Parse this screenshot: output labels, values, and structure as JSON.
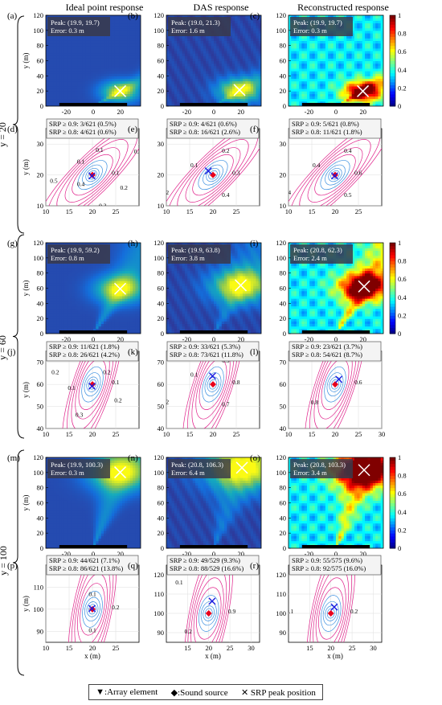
{
  "columns": [
    "Ideal point response",
    "DAS response",
    "Reconstructed response"
  ],
  "rows": [
    "y = 20",
    "y = 60",
    "y = 100"
  ],
  "legend": {
    "array": "▼:Array element",
    "source": "◆:Sound source",
    "peak": "✕ SRP peak position"
  },
  "colors": {
    "contour_low": "#3b8fe0",
    "contour_high": "#e0208a",
    "source": "#e8001c",
    "peak_marker": "#1a1adf"
  },
  "chart_data": [
    {
      "label": "(a)",
      "type": "heatmap",
      "variant": "ideal",
      "row": 0,
      "col": 0,
      "text": [
        "Peak: (19.9, 19.7)",
        "Error: 0.3 m"
      ],
      "xlim": [
        -35,
        35
      ],
      "ylim": [
        0,
        120
      ],
      "xticks": [
        -20,
        0,
        20
      ],
      "yticks": [
        0,
        20,
        40,
        60,
        80,
        100,
        120
      ],
      "ylabel": "y (m)",
      "peak": [
        19.9,
        19.7
      ],
      "colorbar": false
    },
    {
      "label": "(b)",
      "type": "heatmap",
      "variant": "das",
      "row": 0,
      "col": 1,
      "text": [
        "Peak: (19.0, 21.3)",
        "Error: 1.6 m"
      ],
      "xlim": [
        -35,
        35
      ],
      "ylim": [
        0,
        120
      ],
      "xticks": [
        -20,
        0,
        20
      ],
      "yticks": [
        0,
        20,
        40,
        60,
        80,
        100,
        120
      ],
      "peak": [
        19.0,
        21.3
      ],
      "colorbar": false
    },
    {
      "label": "(c)",
      "type": "heatmap",
      "variant": "recon",
      "row": 0,
      "col": 2,
      "text": [
        "Peak: (19.9, 19.7)",
        "Error: 0.3 m"
      ],
      "xlim": [
        -35,
        35
      ],
      "ylim": [
        0,
        120
      ],
      "xticks": [
        -20,
        0,
        20
      ],
      "yticks": [
        0,
        20,
        40,
        60,
        80,
        100,
        120
      ],
      "peak": [
        19.9,
        19.7
      ],
      "colorbar": true,
      "colorbar_ticks": [
        0,
        0.2,
        0.4,
        0.6,
        0.8,
        1
      ]
    },
    {
      "label": "(d)",
      "type": "contour",
      "row": 1,
      "col": 0,
      "text": [
        "SRP ≥ 0.9: 3/621 (0.5%)",
        "SRP ≥ 0.8: 4/621 (0.6%)"
      ],
      "xlim": [
        10,
        30
      ],
      "ylim": [
        10,
        35
      ],
      "xticks": [
        10,
        15,
        20,
        25
      ],
      "yticks": [
        10,
        20,
        30
      ],
      "ylabel": "y (m)",
      "source": [
        20,
        20
      ],
      "peak": [
        19.9,
        19.7
      ],
      "contour_labels": [
        "0.1",
        "0.2",
        "0.3",
        "0.4",
        "0.5",
        "0.3",
        "0.1",
        "0.1",
        "0.2"
      ]
    },
    {
      "label": "(e)",
      "type": "contour",
      "row": 1,
      "col": 1,
      "text": [
        "SRP ≥ 0.9: 4/621 (0.6%)",
        "SRP ≥ 0.8: 16/621 (2.6%)"
      ],
      "xlim": [
        10,
        30
      ],
      "ylim": [
        10,
        35
      ],
      "xticks": [
        10,
        15,
        20,
        25
      ],
      "yticks": [
        10,
        20,
        30
      ],
      "source": [
        20,
        20
      ],
      "peak": [
        19.0,
        21.3
      ],
      "contour_labels": [
        "0.3",
        "0.4",
        "0.2",
        "0.1",
        "0.2"
      ]
    },
    {
      "label": "(f)",
      "type": "contour",
      "row": 1,
      "col": 2,
      "text": [
        "SRP ≥ 0.9: 5/621 (0.8%)",
        "SRP ≥ 0.8: 11/621 (1.8%)"
      ],
      "xlim": [
        10,
        30
      ],
      "ylim": [
        10,
        35
      ],
      "xticks": [
        10,
        15,
        20,
        25
      ],
      "yticks": [
        10,
        20,
        30
      ],
      "source": [
        20,
        20
      ],
      "peak": [
        19.9,
        19.7
      ],
      "contour_labels": [
        "0.6",
        "0.5",
        "0.4",
        "0.4",
        "0.4"
      ]
    },
    {
      "label": "(g)",
      "type": "heatmap",
      "variant": "ideal",
      "row": 2,
      "col": 0,
      "text": [
        "Peak: (19.9, 59.2)",
        "Error: 0.8 m"
      ],
      "xlim": [
        -35,
        35
      ],
      "ylim": [
        0,
        120
      ],
      "xticks": [
        -20,
        0,
        20
      ],
      "yticks": [
        0,
        20,
        40,
        60,
        80,
        100,
        120
      ],
      "ylabel": "y (m)",
      "peak": [
        19.9,
        59.2
      ],
      "colorbar": false
    },
    {
      "label": "(h)",
      "type": "heatmap",
      "variant": "das",
      "row": 2,
      "col": 1,
      "text": [
        "Peak: (19.9, 63.8)",
        "Error: 3.8 m"
      ],
      "xlim": [
        -35,
        35
      ],
      "ylim": [
        0,
        120
      ],
      "xticks": [
        -20,
        0,
        20
      ],
      "yticks": [
        0,
        20,
        40,
        60,
        80,
        100,
        120
      ],
      "peak": [
        19.9,
        63.8
      ],
      "colorbar": false
    },
    {
      "label": "(i)",
      "type": "heatmap",
      "variant": "recon",
      "row": 2,
      "col": 2,
      "text": [
        "Peak: (20.8, 62.3)",
        "Error: 2.4 m"
      ],
      "xlim": [
        -35,
        35
      ],
      "ylim": [
        0,
        120
      ],
      "xticks": [
        -20,
        0,
        20
      ],
      "yticks": [
        0,
        20,
        40,
        60,
        80,
        100,
        120
      ],
      "peak": [
        20.8,
        62.3
      ],
      "colorbar": true,
      "colorbar_ticks": [
        0,
        0.2,
        0.4,
        0.6,
        0.8,
        1
      ]
    },
    {
      "label": "(j)",
      "type": "contour",
      "row": 3,
      "col": 0,
      "text": [
        "SRP ≥ 0.9: 11/621 (1.8%)",
        "SRP ≥ 0.8: 26/621 (4.2%)"
      ],
      "xlim": [
        10,
        30
      ],
      "ylim": [
        40,
        75
      ],
      "xticks": [
        10,
        15,
        20,
        25
      ],
      "yticks": [
        40,
        50,
        60,
        70
      ],
      "ylabel": "y (m)",
      "source": [
        20,
        60
      ],
      "peak": [
        19.9,
        59.2
      ],
      "contour_labels": [
        "0.1",
        "0.2",
        "0.3",
        "0.1",
        "0.2",
        "0.3",
        "0.2"
      ]
    },
    {
      "label": "(k)",
      "type": "contour",
      "row": 3,
      "col": 1,
      "text": [
        "SRP ≥ 0.9: 33/621 (5.3%)",
        "SRP ≥ 0.8: 73/621 (11.8%)"
      ],
      "xlim": [
        10,
        30
      ],
      "ylim": [
        40,
        75
      ],
      "xticks": [
        10,
        15,
        20,
        25
      ],
      "yticks": [
        40,
        50,
        60,
        70
      ],
      "source": [
        20,
        60
      ],
      "peak": [
        19.9,
        63.8
      ],
      "contour_labels": [
        "0.8",
        "0.7",
        "0.2",
        "0.1",
        "0.3"
      ]
    },
    {
      "label": "(l)",
      "type": "contour",
      "row": 3,
      "col": 2,
      "text": [
        "SRP ≥ 0.9: 23/621 (3.7%)",
        "SRP ≥ 0.8: 54/621 (8.7%)"
      ],
      "xlim": [
        10,
        30
      ],
      "ylim": [
        40,
        75
      ],
      "xticks": [
        10,
        15,
        20,
        25,
        30
      ],
      "yticks": [
        40,
        50,
        60,
        70
      ],
      "source": [
        20,
        60
      ],
      "peak": [
        20.8,
        62.3
      ],
      "contour_labels": [
        "0.6",
        "0.8",
        "0.4"
      ]
    },
    {
      "label": "(m)",
      "type": "heatmap",
      "variant": "ideal",
      "row": 4,
      "col": 0,
      "text": [
        "Peak: (19.9, 100.3)",
        "Error: 0.3 m"
      ],
      "xlim": [
        -35,
        35
      ],
      "ylim": [
        0,
        120
      ],
      "xticks": [
        -20,
        0,
        20
      ],
      "yticks": [
        0,
        20,
        40,
        60,
        80,
        100,
        120
      ],
      "ylabel": "y (m)",
      "peak": [
        19.9,
        100.3
      ],
      "colorbar": false
    },
    {
      "label": "(n)",
      "type": "heatmap",
      "variant": "das",
      "row": 4,
      "col": 1,
      "text": [
        "Peak: (20.8, 106.3)",
        "Error: 6.4 m"
      ],
      "xlim": [
        -35,
        35
      ],
      "ylim": [
        0,
        120
      ],
      "xticks": [
        -20,
        0,
        20
      ],
      "yticks": [
        0,
        20,
        40,
        60,
        80,
        100,
        120
      ],
      "peak": [
        20.8,
        106.3
      ],
      "colorbar": false
    },
    {
      "label": "(o)",
      "type": "heatmap",
      "variant": "recon",
      "row": 4,
      "col": 2,
      "text": [
        "Peak: (20.8, 103.3)",
        "Error: 3.4 m"
      ],
      "xlim": [
        -35,
        35
      ],
      "ylim": [
        0,
        120
      ],
      "xticks": [
        -20,
        0,
        20
      ],
      "yticks": [
        0,
        20,
        40,
        60,
        80,
        100,
        120
      ],
      "peak": [
        20.8,
        103.3
      ],
      "colorbar": true,
      "colorbar_ticks": [
        0,
        0.2,
        0.4,
        0.6,
        0.8,
        1
      ]
    },
    {
      "label": "(p)",
      "type": "contour",
      "row": 5,
      "col": 0,
      "text": [
        "SRP ≥ 0.9: 44/621 (7.1%)",
        "SRP ≥ 0.8: 86/621 (13.8%)"
      ],
      "xlim": [
        10,
        30
      ],
      "ylim": [
        85,
        120
      ],
      "xticks": [
        10,
        15,
        20,
        25
      ],
      "yticks": [
        90,
        100,
        110
      ],
      "ylabel": "y (m)",
      "xlabel": "x (m)",
      "source": [
        20,
        100
      ],
      "peak": [
        19.9,
        100.3
      ],
      "contour_labels": [
        "0.2",
        "0.1",
        "0.3",
        "0.1"
      ]
    },
    {
      "label": "(q)",
      "type": "contour",
      "row": 5,
      "col": 1,
      "text": [
        "SRP ≥ 0.9: 49/529 (9.3%)",
        "SRP ≥ 0.8: 88/529 (16.6%)"
      ],
      "xlim": [
        10,
        32
      ],
      "ylim": [
        85,
        125
      ],
      "xticks": [
        15,
        20,
        25,
        30
      ],
      "yticks": [
        90,
        100,
        110,
        120
      ],
      "xlabel": "x (m)",
      "source": [
        20,
        100
      ],
      "peak": [
        20.8,
        106.3
      ],
      "contour_labels": [
        "0.9",
        "0.2",
        "0.1"
      ]
    },
    {
      "label": "(r)",
      "type": "contour",
      "row": 5,
      "col": 2,
      "text": [
        "SRP ≥ 0.9: 55/575 (9.6%)",
        "SRP ≥ 0.8: 92/575 (16.0%)"
      ],
      "xlim": [
        10,
        32
      ],
      "ylim": [
        85,
        125
      ],
      "xticks": [
        15,
        20,
        25,
        30
      ],
      "yticks": [
        90,
        100,
        110,
        120
      ],
      "xlabel": "x (m)",
      "source": [
        20,
        100
      ],
      "peak": [
        20.8,
        103.3
      ],
      "contour_labels": [
        "0.2",
        "0.1"
      ]
    }
  ]
}
